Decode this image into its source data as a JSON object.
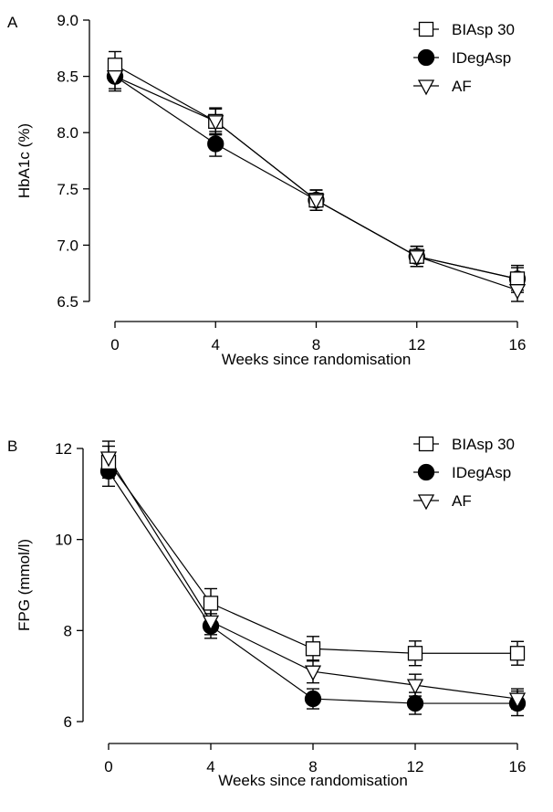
{
  "chart_data": [
    {
      "type": "line",
      "panel_label": "A",
      "xlabel": "Weeks since randomisation",
      "ylabel": "HbA1c (%)",
      "x": [
        0,
        4,
        8,
        12,
        16
      ],
      "xlim": [
        0,
        16
      ],
      "ylim": [
        6.5,
        9.0
      ],
      "xticks": [
        "0",
        "4",
        "8",
        "12",
        "16"
      ],
      "yticks": [
        "6.5",
        "7.0",
        "7.5",
        "8.0",
        "8.5",
        "9.0"
      ],
      "grid": false,
      "legend_position": "top-right",
      "series": [
        {
          "name": "BIAsp 30",
          "marker": "square-open",
          "values": [
            8.6,
            8.1,
            7.4,
            6.9,
            6.7
          ],
          "err": [
            0.12,
            0.12,
            0.09,
            0.09,
            0.12
          ]
        },
        {
          "name": "IDegAsp",
          "marker": "circle-filled",
          "values": [
            8.5,
            7.9,
            7.4,
            6.9,
            6.7
          ],
          "err": [
            0.13,
            0.11,
            0.09,
            0.09,
            0.1
          ]
        },
        {
          "name": "AF",
          "marker": "triangle-down-open",
          "values": [
            8.5,
            8.1,
            7.4,
            6.9,
            6.6
          ],
          "err": [
            0.11,
            0.11,
            0.09,
            0.09,
            0.1
          ]
        }
      ]
    },
    {
      "type": "line",
      "panel_label": "B",
      "xlabel": "Weeks since randomisation",
      "ylabel": "FPG (mmol/l)",
      "x": [
        0,
        4,
        8,
        12,
        16
      ],
      "xlim": [
        0,
        16
      ],
      "ylim": [
        6,
        12
      ],
      "xticks": [
        "0",
        "4",
        "8",
        "12",
        "16"
      ],
      "yticks": [
        "6",
        "8",
        "10",
        "12"
      ],
      "grid": false,
      "legend_position": "top-right",
      "series": [
        {
          "name": "BIAsp 30",
          "marker": "square-open",
          "values": [
            11.7,
            8.6,
            7.6,
            7.5,
            7.5
          ],
          "err": [
            0.35,
            0.32,
            0.27,
            0.27,
            0.26
          ]
        },
        {
          "name": "IDegAsp",
          "marker": "circle-filled",
          "values": [
            11.5,
            8.1,
            6.5,
            6.4,
            6.4
          ],
          "err": [
            0.33,
            0.27,
            0.22,
            0.24,
            0.27
          ]
        },
        {
          "name": "AF",
          "marker": "triangle-down-open",
          "values": [
            11.8,
            8.2,
            7.1,
            6.8,
            6.5
          ],
          "err": [
            0.36,
            0.29,
            0.25,
            0.24,
            0.22
          ]
        }
      ]
    }
  ]
}
